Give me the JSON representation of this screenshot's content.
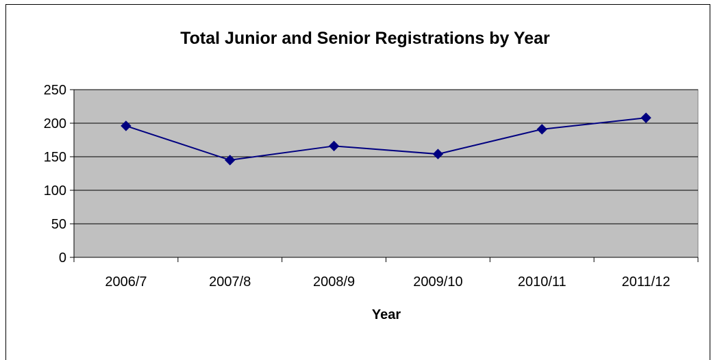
{
  "chart_data": {
    "type": "line",
    "title": "Total Junior and Senior Registrations by Year",
    "xlabel": "Year",
    "ylabel": "",
    "categories": [
      "2006/7",
      "2007/8",
      "2008/9",
      "2009/10",
      "2010/11",
      "2011/12"
    ],
    "series": [
      {
        "values": [
          196,
          145,
          166,
          154,
          191,
          208
        ]
      }
    ],
    "ylim": [
      0,
      250
    ],
    "yticks": [
      "0",
      "50",
      "100",
      "150",
      "200",
      "250"
    ],
    "grid": true,
    "legend": "none",
    "colors": {
      "plot_background": "#c0c0c0",
      "line": "#000080",
      "marker": "#000080",
      "gridline": "#000000"
    }
  }
}
